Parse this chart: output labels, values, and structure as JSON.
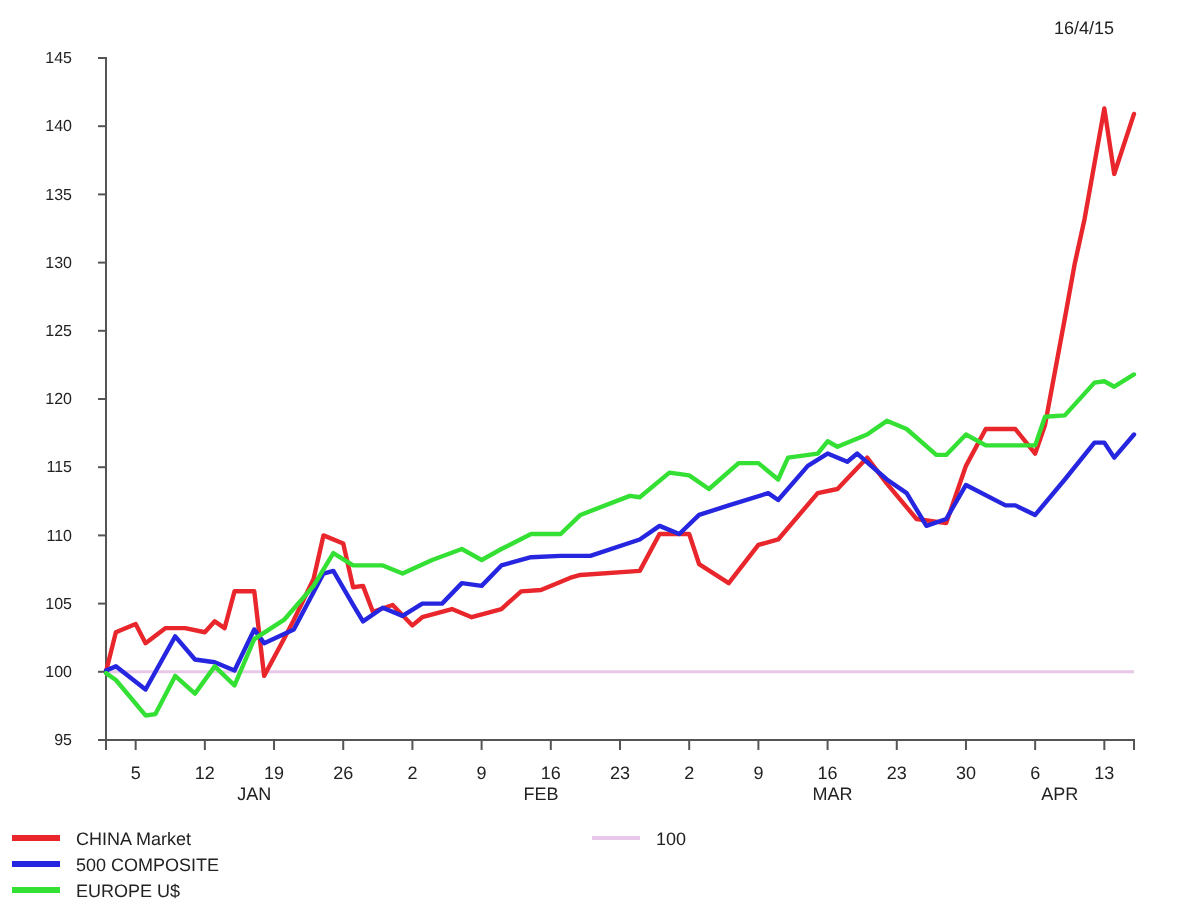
{
  "chart_data": {
    "type": "line",
    "legend": "bottom",
    "grid": false,
    "marker": "none",
    "line_style": "solid",
    "ylim": [
      95,
      145
    ],
    "yticks": [
      95,
      100,
      105,
      110,
      115,
      120,
      125,
      130,
      135,
      140,
      145
    ],
    "xlim": [
      "--01-02",
      "--04-16"
    ],
    "xticks": [
      {
        "value": "--01-05",
        "label": "5"
      },
      {
        "value": "--01-12",
        "label": "12"
      },
      {
        "value": "--01-19",
        "label": "19"
      },
      {
        "value": "--01-26",
        "label": "26"
      },
      {
        "value": "--02-02",
        "label": "2"
      },
      {
        "value": "--02-09",
        "label": "9"
      },
      {
        "value": "--02-16",
        "label": "16"
      },
      {
        "value": "--02-23",
        "label": "23"
      },
      {
        "value": "--03-02",
        "label": "2"
      },
      {
        "value": "--03-09",
        "label": "9"
      },
      {
        "value": "--03-16",
        "label": "16"
      },
      {
        "value": "--03-23",
        "label": "23"
      },
      {
        "value": "--03-30",
        "label": "30"
      },
      {
        "value": "--04-06",
        "label": "6"
      },
      {
        "value": "--04-13",
        "label": "13"
      }
    ],
    "annotations": [
      "16/4/15",
      "JAN",
      "FEB",
      "MAR",
      "APR"
    ],
    "ref_lines": [
      {
        "axis": "y",
        "value": 100,
        "label": "100",
        "color": "#e8c8e8"
      }
    ],
    "series": [
      {
        "name": "CHINA Market",
        "color": "#e8262b",
        "x": [
          "--01-02",
          "--01-03",
          "--01-05",
          "--01-06",
          "--01-08",
          "--01-10",
          "--01-12",
          "--01-13",
          "--01-14",
          "--01-15",
          "--01-17",
          "--01-18",
          "--01-20",
          "--01-21",
          "--01-23",
          "--01-24",
          "--01-26",
          "--01-27",
          "--01-28",
          "--01-29",
          "--01-31",
          "--02-02",
          "--02-03",
          "--02-06",
          "--02-08",
          "--02-11",
          "--02-13",
          "--02-15",
          "--02-18",
          "--02-19",
          "--02-25",
          "--02-27",
          "--03-02",
          "--03-03",
          "--03-06",
          "--03-09",
          "--03-11",
          "--03-15",
          "--03-17",
          "--03-20",
          "--03-22",
          "--03-25",
          "--03-28",
          "--03-30",
          "--04-01",
          "--04-04",
          "--04-06",
          "--04-07",
          "--04-09",
          "--04-10",
          "--04-11",
          "--04-13",
          "--04-14",
          "--04-16"
        ],
        "values": [
          100,
          102.9,
          103.5,
          102.1,
          103.2,
          103.2,
          102.9,
          103.7,
          103.2,
          105.9,
          105.9,
          99.7,
          102.4,
          103.8,
          106.8,
          110,
          109.4,
          106.2,
          106.3,
          104.4,
          104.9,
          103.4,
          104,
          104.6,
          104,
          104.6,
          105.9,
          106,
          106.9,
          107.1,
          107.4,
          110.1,
          110.1,
          107.9,
          106.5,
          109.3,
          109.7,
          113.1,
          113.4,
          115.7,
          113.8,
          111.2,
          110.9,
          115.1,
          117.8,
          117.8,
          116,
          118.1,
          125.9,
          129.9,
          133.2,
          141.3,
          136.5,
          140.9
        ]
      },
      {
        "name": "500 COMPOSITE",
        "color": "#2626e0",
        "x": [
          "--01-02",
          "--01-03",
          "--01-06",
          "--01-09",
          "--01-11",
          "--01-13",
          "--01-15",
          "--01-17",
          "--01-18",
          "--01-21",
          "--01-24",
          "--01-25",
          "--01-27",
          "--01-28",
          "--01-30",
          "--02-01",
          "--02-03",
          "--02-05",
          "--02-07",
          "--02-09",
          "--02-11",
          "--02-14",
          "--02-17",
          "--02-20",
          "--02-25",
          "--02-27",
          "--03-01",
          "--03-03",
          "--03-06",
          "--03-10",
          "--03-11",
          "--03-14",
          "--03-16",
          "--03-18",
          "--03-19",
          "--03-22",
          "--03-24",
          "--03-26",
          "--03-28",
          "--03-30",
          "--04-03",
          "--04-04",
          "--04-06",
          "--04-09",
          "--04-12",
          "--04-13",
          "--04-14",
          "--04-16"
        ],
        "values": [
          100.1,
          100.4,
          98.7,
          102.6,
          100.9,
          100.7,
          100.1,
          103.1,
          102.1,
          103.1,
          107.2,
          107.4,
          104.9,
          103.7,
          104.7,
          104.1,
          105,
          105,
          106.5,
          106.3,
          107.8,
          108.4,
          108.5,
          108.5,
          109.7,
          110.7,
          110.1,
          111.5,
          112.2,
          113.1,
          112.6,
          115.1,
          116,
          115.4,
          116,
          114.1,
          113.1,
          110.7,
          111.2,
          113.7,
          112.2,
          112.2,
          111.5,
          114.1,
          116.8,
          116.8,
          115.7,
          117.4
        ]
      },
      {
        "name": "EUROPE U$",
        "color": "#33e033",
        "x": [
          "--01-02",
          "--01-03",
          "--01-06",
          "--01-07",
          "--01-09",
          "--01-11",
          "--01-13",
          "--01-15",
          "--01-17",
          "--01-20",
          "--01-23",
          "--01-25",
          "--01-27",
          "--01-30",
          "--02-01",
          "--02-04",
          "--02-07",
          "--02-09",
          "--02-11",
          "--02-14",
          "--02-17",
          "--02-19",
          "--02-24",
          "--02-25",
          "--02-28",
          "--03-02",
          "--03-04",
          "--03-07",
          "--03-09",
          "--03-11",
          "--03-12",
          "--03-15",
          "--03-16",
          "--03-17",
          "--03-20",
          "--03-22",
          "--03-24",
          "--03-27",
          "--03-28",
          "--03-30",
          "--04-01",
          "--04-06",
          "--04-07",
          "--04-09",
          "--04-12",
          "--04-13",
          "--04-14",
          "--04-16"
        ],
        "values": [
          99.9,
          99.4,
          96.8,
          96.9,
          99.7,
          98.4,
          100.4,
          99,
          102.4,
          103.8,
          106.3,
          108.7,
          107.8,
          107.8,
          107.2,
          108.2,
          109,
          108.2,
          109,
          110.1,
          110.1,
          111.5,
          112.9,
          112.8,
          114.6,
          114.4,
          113.4,
          115.3,
          115.3,
          114.1,
          115.7,
          116,
          116.9,
          116.5,
          117.4,
          118.4,
          117.8,
          115.9,
          115.9,
          117.4,
          116.6,
          116.6,
          118.7,
          118.8,
          121.2,
          121.3,
          120.9,
          121.8
        ]
      }
    ]
  }
}
